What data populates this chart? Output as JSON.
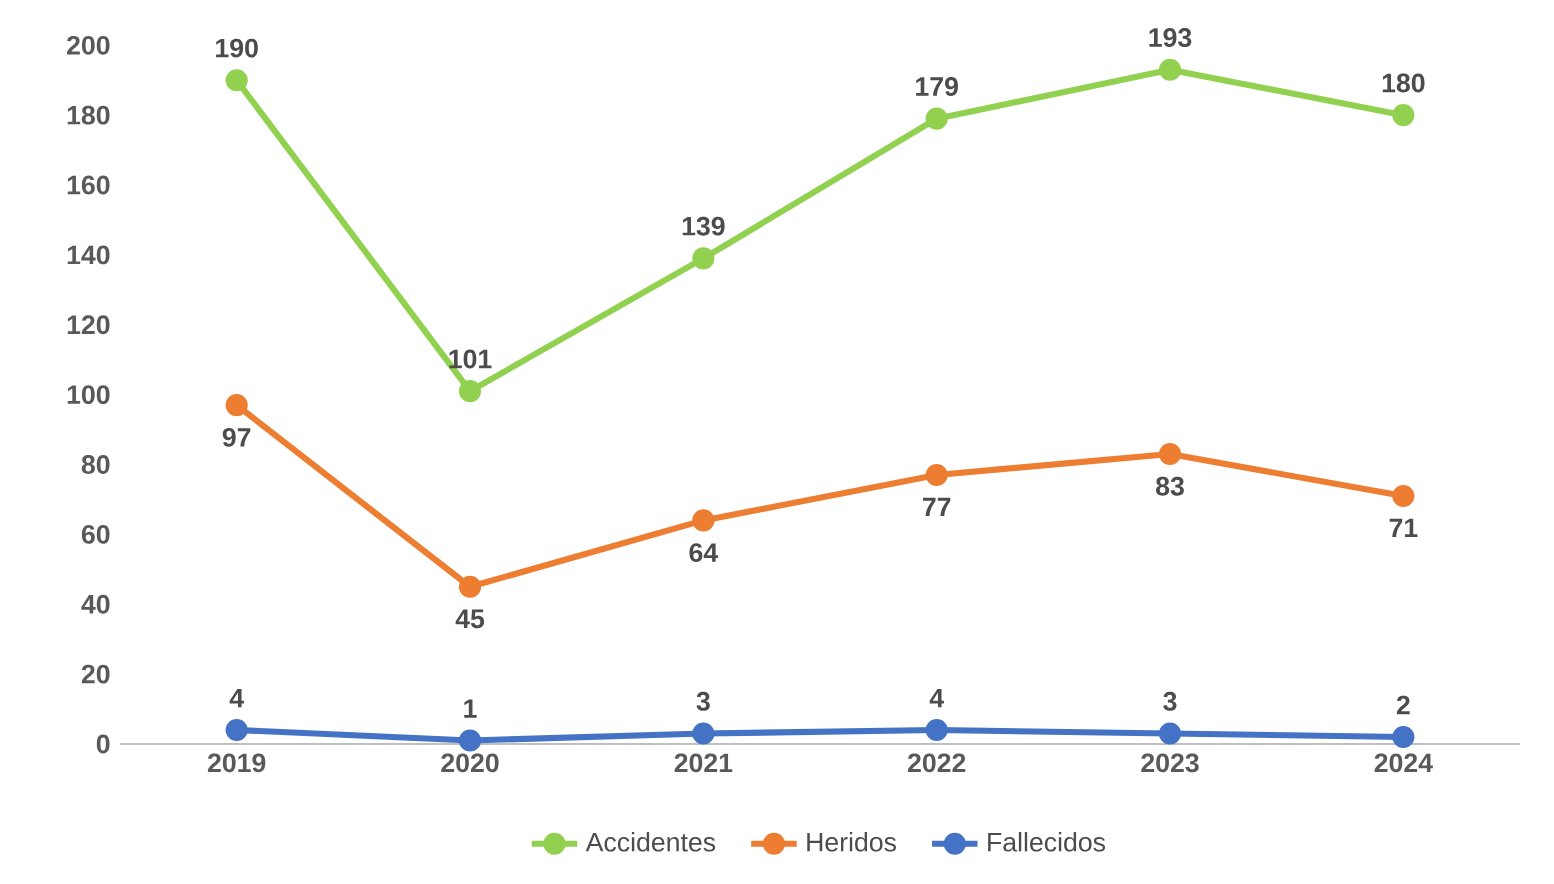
{
  "chart_data": {
    "type": "line",
    "categories": [
      "2019",
      "2020",
      "2021",
      "2022",
      "2023",
      "2024"
    ],
    "series": [
      {
        "name": "Accidentes",
        "color": "#92d050",
        "values": [
          190,
          101,
          139,
          179,
          193,
          180
        ]
      },
      {
        "name": "Heridos",
        "color": "#ed7d31",
        "values": [
          97,
          45,
          64,
          77,
          83,
          71
        ]
      },
      {
        "name": "Fallecidos",
        "color": "#4472c4",
        "values": [
          4,
          1,
          3,
          4,
          3,
          2
        ]
      }
    ],
    "ylim": [
      0,
      200
    ],
    "yticks": [
      0,
      20,
      40,
      60,
      80,
      100,
      120,
      140,
      160,
      180,
      200
    ],
    "grid": false,
    "legend": "bottom",
    "marker": "circle",
    "line_style": "solid",
    "data_labels": true
  }
}
